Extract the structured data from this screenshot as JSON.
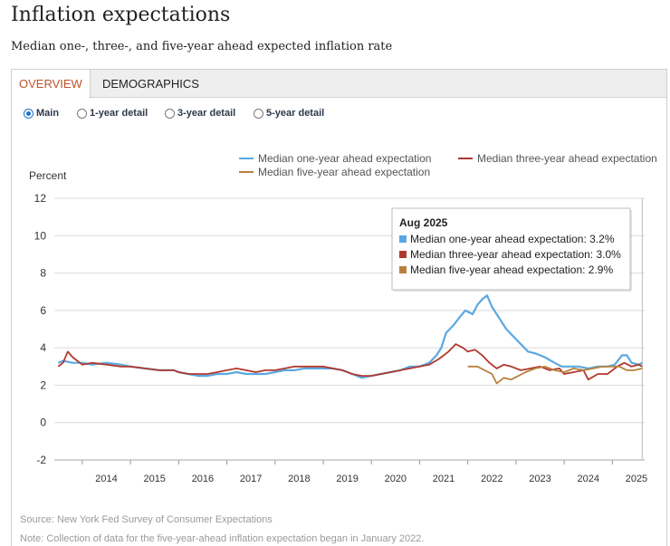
{
  "page": {
    "title": "Inflation expectations",
    "subtitle": "Median one-, three-, and five-year ahead expected inflation rate"
  },
  "tabs": [
    {
      "label": "OVERVIEW",
      "active": true
    },
    {
      "label": "DEMOGRAPHICS",
      "active": false
    }
  ],
  "radios": [
    {
      "label": "Main",
      "selected": true
    },
    {
      "label": "1-year detail",
      "selected": false
    },
    {
      "label": "3-year detail",
      "selected": false
    },
    {
      "label": "5-year detail",
      "selected": false
    }
  ],
  "colors": {
    "one_year": "#5ba8e0",
    "three_year": "#b0392e",
    "five_year": "#b8803e",
    "grid": "#d9d9d9"
  },
  "tooltip": {
    "title": "Aug 2025",
    "lines": [
      {
        "series": "one_year",
        "text": "Median one-year ahead expectation: 3.2%"
      },
      {
        "series": "three_year",
        "text": "Median three-year ahead expectation: 3.0%"
      },
      {
        "series": "five_year",
        "text": "Median five-year ahead expectation: 2.9%"
      }
    ]
  },
  "footer": {
    "source": "Source: New York Fed Survey of Consumer Expectations",
    "note": "Note: Collection of data for the five-year-ahead inflation expectation began in January 2022."
  },
  "chart_data": {
    "type": "line",
    "title": "Inflation expectations",
    "ylabel": "Percent",
    "xlabel": "",
    "ylim": [
      -2,
      12
    ],
    "yticks": [
      -2,
      0,
      2,
      4,
      6,
      8,
      10,
      12
    ],
    "xlim": [
      2013.42,
      2025.67
    ],
    "xticks": [
      "2014",
      "2015",
      "2016",
      "2017",
      "2018",
      "2019",
      "2020",
      "2021",
      "2022",
      "2023",
      "2024",
      "2025"
    ],
    "legend": "top-right",
    "grid": true,
    "series": [
      {
        "key": "one_year",
        "name": "Median one-year ahead expectation",
        "points": [
          [
            2013.5,
            3.2
          ],
          [
            2013.6,
            3.3
          ],
          [
            2013.8,
            3.2
          ],
          [
            2014.0,
            3.2
          ],
          [
            2014.2,
            3.1
          ],
          [
            2014.5,
            3.2
          ],
          [
            2014.8,
            3.1
          ],
          [
            2015.0,
            3.0
          ],
          [
            2015.3,
            2.9
          ],
          [
            2015.6,
            2.8
          ],
          [
            2015.9,
            2.8
          ],
          [
            2016.0,
            2.7
          ],
          [
            2016.2,
            2.6
          ],
          [
            2016.4,
            2.5
          ],
          [
            2016.6,
            2.5
          ],
          [
            2016.8,
            2.6
          ],
          [
            2017.0,
            2.6
          ],
          [
            2017.2,
            2.7
          ],
          [
            2017.4,
            2.6
          ],
          [
            2017.6,
            2.6
          ],
          [
            2017.8,
            2.6
          ],
          [
            2018.0,
            2.7
          ],
          [
            2018.2,
            2.8
          ],
          [
            2018.4,
            2.8
          ],
          [
            2018.6,
            2.9
          ],
          [
            2018.8,
            2.9
          ],
          [
            2019.0,
            2.9
          ],
          [
            2019.2,
            2.9
          ],
          [
            2019.4,
            2.8
          ],
          [
            2019.6,
            2.6
          ],
          [
            2019.8,
            2.4
          ],
          [
            2020.0,
            2.5
          ],
          [
            2020.2,
            2.6
          ],
          [
            2020.4,
            2.7
          ],
          [
            2020.6,
            2.8
          ],
          [
            2020.8,
            3.0
          ],
          [
            2021.0,
            3.0
          ],
          [
            2021.2,
            3.2
          ],
          [
            2021.35,
            3.6
          ],
          [
            2021.45,
            4.0
          ],
          [
            2021.55,
            4.8
          ],
          [
            2021.7,
            5.2
          ],
          [
            2021.85,
            5.7
          ],
          [
            2021.95,
            6.0
          ],
          [
            2022.1,
            5.8
          ],
          [
            2022.2,
            6.3
          ],
          [
            2022.3,
            6.6
          ],
          [
            2022.4,
            6.8
          ],
          [
            2022.5,
            6.2
          ],
          [
            2022.6,
            5.8
          ],
          [
            2022.7,
            5.4
          ],
          [
            2022.8,
            5.0
          ],
          [
            2022.95,
            4.6
          ],
          [
            2023.1,
            4.2
          ],
          [
            2023.25,
            3.8
          ],
          [
            2023.4,
            3.7
          ],
          [
            2023.6,
            3.5
          ],
          [
            2023.8,
            3.2
          ],
          [
            2023.95,
            3.0
          ],
          [
            2024.1,
            3.0
          ],
          [
            2024.3,
            3.0
          ],
          [
            2024.5,
            2.9
          ],
          [
            2024.7,
            3.0
          ],
          [
            2024.9,
            3.0
          ],
          [
            2025.05,
            3.1
          ],
          [
            2025.2,
            3.6
          ],
          [
            2025.3,
            3.6
          ],
          [
            2025.4,
            3.2
          ],
          [
            2025.55,
            3.1
          ],
          [
            2025.62,
            3.2
          ]
        ]
      },
      {
        "key": "three_year",
        "name": "Median three-year ahead expectation",
        "points": [
          [
            2013.5,
            3.0
          ],
          [
            2013.6,
            3.2
          ],
          [
            2013.7,
            3.8
          ],
          [
            2013.8,
            3.5
          ],
          [
            2014.0,
            3.1
          ],
          [
            2014.2,
            3.2
          ],
          [
            2014.5,
            3.1
          ],
          [
            2014.8,
            3.0
          ],
          [
            2015.0,
            3.0
          ],
          [
            2015.3,
            2.9
          ],
          [
            2015.6,
            2.8
          ],
          [
            2015.9,
            2.8
          ],
          [
            2016.0,
            2.7
          ],
          [
            2016.2,
            2.6
          ],
          [
            2016.4,
            2.6
          ],
          [
            2016.6,
            2.6
          ],
          [
            2016.8,
            2.7
          ],
          [
            2017.0,
            2.8
          ],
          [
            2017.2,
            2.9
          ],
          [
            2017.4,
            2.8
          ],
          [
            2017.6,
            2.7
          ],
          [
            2017.8,
            2.8
          ],
          [
            2018.0,
            2.8
          ],
          [
            2018.2,
            2.9
          ],
          [
            2018.4,
            3.0
          ],
          [
            2018.6,
            3.0
          ],
          [
            2018.8,
            3.0
          ],
          [
            2019.0,
            3.0
          ],
          [
            2019.2,
            2.9
          ],
          [
            2019.4,
            2.8
          ],
          [
            2019.6,
            2.6
          ],
          [
            2019.8,
            2.5
          ],
          [
            2020.0,
            2.5
          ],
          [
            2020.2,
            2.6
          ],
          [
            2020.4,
            2.7
          ],
          [
            2020.6,
            2.8
          ],
          [
            2020.8,
            2.9
          ],
          [
            2021.0,
            3.0
          ],
          [
            2021.2,
            3.1
          ],
          [
            2021.4,
            3.4
          ],
          [
            2021.6,
            3.8
          ],
          [
            2021.75,
            4.2
          ],
          [
            2021.9,
            4.0
          ],
          [
            2022.0,
            3.8
          ],
          [
            2022.15,
            3.9
          ],
          [
            2022.3,
            3.6
          ],
          [
            2022.45,
            3.2
          ],
          [
            2022.6,
            2.9
          ],
          [
            2022.75,
            3.1
          ],
          [
            2022.9,
            3.0
          ],
          [
            2023.1,
            2.8
          ],
          [
            2023.3,
            2.9
          ],
          [
            2023.5,
            3.0
          ],
          [
            2023.7,
            2.8
          ],
          [
            2023.9,
            2.9
          ],
          [
            2024.0,
            2.6
          ],
          [
            2024.2,
            2.7
          ],
          [
            2024.4,
            2.8
          ],
          [
            2024.5,
            2.3
          ],
          [
            2024.7,
            2.6
          ],
          [
            2024.9,
            2.6
          ],
          [
            2025.1,
            3.0
          ],
          [
            2025.25,
            3.2
          ],
          [
            2025.4,
            3.0
          ],
          [
            2025.55,
            3.1
          ],
          [
            2025.62,
            3.0
          ]
        ]
      },
      {
        "key": "five_year",
        "name": "Median five-year ahead expectation",
        "points": [
          [
            2022.0,
            3.0
          ],
          [
            2022.2,
            3.0
          ],
          [
            2022.35,
            2.8
          ],
          [
            2022.5,
            2.6
          ],
          [
            2022.6,
            2.1
          ],
          [
            2022.75,
            2.4
          ],
          [
            2022.9,
            2.3
          ],
          [
            2023.05,
            2.5
          ],
          [
            2023.2,
            2.7
          ],
          [
            2023.4,
            2.9
          ],
          [
            2023.6,
            3.0
          ],
          [
            2023.8,
            2.8
          ],
          [
            2024.0,
            2.7
          ],
          [
            2024.2,
            2.9
          ],
          [
            2024.4,
            2.8
          ],
          [
            2024.6,
            2.9
          ],
          [
            2024.8,
            3.0
          ],
          [
            2025.0,
            3.0
          ],
          [
            2025.15,
            3.0
          ],
          [
            2025.3,
            2.8
          ],
          [
            2025.45,
            2.8
          ],
          [
            2025.62,
            2.9
          ]
        ]
      }
    ]
  }
}
